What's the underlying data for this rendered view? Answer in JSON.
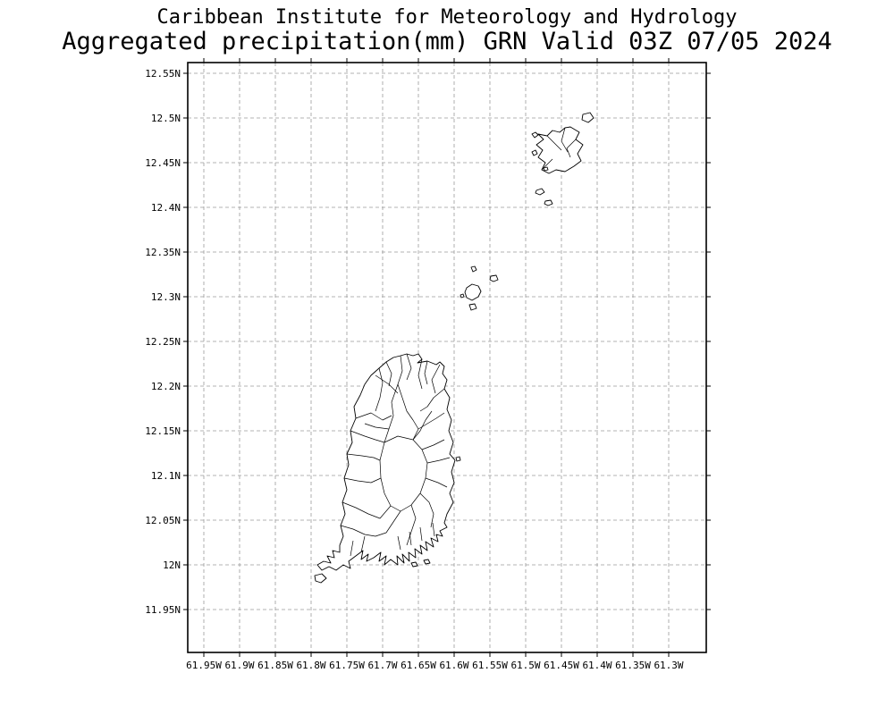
{
  "title": {
    "line1": "Caribbean Institute for Meteorology and Hydrology",
    "line2": "Aggregated precipitation(mm) GRN Valid 03Z 07/05 2024"
  },
  "chart_data": {
    "type": "map",
    "institution": "Caribbean Institute for Meteorology and Hydrology",
    "product": "Aggregated precipitation",
    "units": "mm",
    "domain_code": "GRN",
    "valid": "03Z 07/05 2024",
    "region": "Grenada, Carriacou and southern Grenadine islets",
    "lat_ticks": [
      "12.55N",
      "12.5N",
      "12.45N",
      "12.4N",
      "12.35N",
      "12.3N",
      "12.25N",
      "12.2N",
      "12.15N",
      "12.1N",
      "12.05N",
      "12N",
      "11.95N"
    ],
    "lon_ticks": [
      "61.95W",
      "61.9W",
      "61.85W",
      "61.8W",
      "61.75W",
      "61.7W",
      "61.65W",
      "61.6W",
      "61.55W",
      "61.5W",
      "61.45W",
      "61.4W",
      "61.35W",
      "61.3W"
    ],
    "grid_style": "dashed",
    "precipitation_shading_visible": false,
    "colors": {
      "background": "#ffffff",
      "outline": "#000000",
      "grid": "#9b9b9b",
      "text": "#000000"
    },
    "islands": [
      {
        "name": "grenada",
        "points": [
          [
            238,
            328
          ],
          [
            245,
            326
          ],
          [
            252,
            328
          ],
          [
            258,
            326
          ],
          [
            262,
            332
          ],
          [
            257,
            336
          ],
          [
            268,
            334
          ],
          [
            278,
            338
          ],
          [
            282,
            335
          ],
          [
            287,
            340
          ],
          [
            285,
            348
          ],
          [
            290,
            355
          ],
          [
            287,
            365
          ],
          [
            293,
            375
          ],
          [
            290,
            388
          ],
          [
            295,
            400
          ],
          [
            292,
            412
          ],
          [
            297,
            425
          ],
          [
            293,
            438
          ],
          [
            299,
            445
          ],
          [
            295,
            458
          ],
          [
            298,
            470
          ],
          [
            293,
            482
          ],
          [
            297,
            492
          ],
          [
            290,
            505
          ],
          [
            287,
            515
          ],
          [
            290,
            520
          ],
          [
            282,
            524
          ],
          [
            285,
            530
          ],
          [
            278,
            528
          ],
          [
            280,
            536
          ],
          [
            272,
            532
          ],
          [
            275,
            542
          ],
          [
            266,
            536
          ],
          [
            268,
            546
          ],
          [
            260,
            540
          ],
          [
            262,
            550
          ],
          [
            254,
            544
          ],
          [
            255,
            554
          ],
          [
            247,
            548
          ],
          [
            248,
            558
          ],
          [
            240,
            550
          ],
          [
            242,
            560
          ],
          [
            234,
            552
          ],
          [
            235,
            562
          ],
          [
            227,
            556
          ],
          [
            220,
            562
          ],
          [
            222,
            552
          ],
          [
            214,
            558
          ],
          [
            216,
            548
          ],
          [
            208,
            554
          ],
          [
            200,
            558
          ],
          [
            202,
            550
          ],
          [
            194,
            556
          ],
          [
            196,
            546
          ],
          [
            188,
            552
          ],
          [
            180,
            558
          ],
          [
            182,
            566
          ],
          [
            174,
            562
          ],
          [
            166,
            568
          ],
          [
            158,
            564
          ],
          [
            150,
            568
          ],
          [
            145,
            562
          ],
          [
            152,
            558
          ],
          [
            160,
            560
          ],
          [
            156,
            552
          ],
          [
            164,
            554
          ],
          [
            162,
            546
          ],
          [
            170,
            548
          ],
          [
            170,
            540
          ],
          [
            174,
            530
          ],
          [
            171,
            518
          ],
          [
            176,
            505
          ],
          [
            173,
            492
          ],
          [
            178,
            478
          ],
          [
            175,
            465
          ],
          [
            180,
            450
          ],
          [
            178,
            438
          ],
          [
            184,
            425
          ],
          [
            182,
            412
          ],
          [
            188,
            398
          ],
          [
            186,
            385
          ],
          [
            193,
            372
          ],
          [
            198,
            360
          ],
          [
            205,
            350
          ],
          [
            214,
            342
          ],
          [
            222,
            335
          ],
          [
            230,
            330
          ]
        ]
      },
      {
        "name": "carriacou",
        "points": [
          [
            428,
            72
          ],
          [
            438,
            78
          ],
          [
            434,
            86
          ],
          [
            442,
            92
          ],
          [
            436,
            102
          ],
          [
            440,
            110
          ],
          [
            432,
            116
          ],
          [
            422,
            122
          ],
          [
            412,
            120
          ],
          [
            404,
            124
          ],
          [
            396,
            120
          ],
          [
            400,
            112
          ],
          [
            392,
            106
          ],
          [
            397,
            98
          ],
          [
            390,
            92
          ],
          [
            398,
            86
          ],
          [
            392,
            80
          ],
          [
            402,
            82
          ],
          [
            408,
            76
          ],
          [
            416,
            78
          ],
          [
            422,
            73
          ]
        ]
      },
      {
        "name": "petite-martinique",
        "points": [
          [
            442,
            58
          ],
          [
            450,
            56
          ],
          [
            454,
            62
          ],
          [
            448,
            67
          ],
          [
            441,
            64
          ]
        ]
      },
      {
        "name": "sandy-island",
        "points": [
          [
            385,
            80
          ],
          [
            389,
            78
          ],
          [
            392,
            81
          ],
          [
            388,
            84
          ]
        ]
      },
      {
        "name": "mabouya-island",
        "points": [
          [
            385,
            100
          ],
          [
            389,
            98
          ],
          [
            391,
            102
          ],
          [
            387,
            104
          ]
        ]
      },
      {
        "name": "jack-a-dan",
        "points": [
          [
            398,
            118
          ],
          [
            402,
            117
          ],
          [
            403,
            120
          ],
          [
            399,
            121
          ]
        ]
      },
      {
        "name": "saline-island",
        "points": [
          [
            390,
            143
          ],
          [
            396,
            141
          ],
          [
            399,
            145
          ],
          [
            394,
            148
          ],
          [
            389,
            146
          ]
        ]
      },
      {
        "name": "frigate-island",
        "points": [
          [
            400,
            155
          ],
          [
            406,
            154
          ],
          [
            408,
            158
          ],
          [
            403,
            160
          ],
          [
            399,
            158
          ]
        ]
      },
      {
        "name": "london-bridge",
        "points": [
          [
            317,
            229
          ],
          [
            321,
            228
          ],
          [
            323,
            232
          ],
          [
            319,
            234
          ]
        ]
      },
      {
        "name": "les-tantes",
        "points": [
          [
            339,
            239
          ],
          [
            345,
            238
          ],
          [
            347,
            243
          ],
          [
            342,
            245
          ],
          [
            338,
            243
          ]
        ]
      },
      {
        "name": "ronde-island",
        "points": [
          [
            312,
            252
          ],
          [
            318,
            248
          ],
          [
            325,
            250
          ],
          [
            328,
            256
          ],
          [
            325,
            262
          ],
          [
            318,
            266
          ],
          [
            312,
            263
          ],
          [
            310,
            257
          ]
        ]
      },
      {
        "name": "caille-island",
        "points": [
          [
            315,
            271
          ],
          [
            321,
            270
          ],
          [
            323,
            275
          ],
          [
            317,
            277
          ]
        ]
      },
      {
        "name": "diamond-rock",
        "points": [
          [
            305,
            260
          ],
          [
            308,
            259
          ],
          [
            309,
            262
          ],
          [
            306,
            263
          ]
        ]
      },
      {
        "name": "east-coast-islet",
        "points": [
          [
            300,
            442
          ],
          [
            304,
            441
          ],
          [
            305,
            445
          ],
          [
            301,
            446
          ]
        ]
      },
      {
        "name": "hog-island",
        "points": [
          [
            250,
            560
          ],
          [
            255,
            559
          ],
          [
            257,
            563
          ],
          [
            252,
            564
          ]
        ]
      },
      {
        "name": "calivigny-island",
        "points": [
          [
            264,
            557
          ],
          [
            269,
            556
          ],
          [
            271,
            560
          ],
          [
            266,
            561
          ]
        ]
      },
      {
        "name": "glover-island",
        "points": [
          [
            142,
            574
          ],
          [
            150,
            572
          ],
          [
            155,
            577
          ],
          [
            149,
            582
          ],
          [
            143,
            580
          ]
        ]
      }
    ],
    "watershed_boundaries": [
      [
        [
          220,
          425
        ],
        [
          235,
          418
        ],
        [
          252,
          422
        ],
        [
          262,
          433
        ],
        [
          268,
          448
        ],
        [
          266,
          465
        ],
        [
          260,
          482
        ],
        [
          250,
          495
        ],
        [
          238,
          502
        ],
        [
          227,
          496
        ],
        [
          220,
          482
        ],
        [
          216,
          465
        ],
        [
          215,
          445
        ],
        [
          220,
          425
        ]
      ],
      [
        [
          238,
          328
        ],
        [
          240,
          345
        ],
        [
          235,
          360
        ],
        [
          240,
          375
        ]
      ],
      [
        [
          245,
          326
        ],
        [
          250,
          342
        ],
        [
          245,
          355
        ]
      ],
      [
        [
          210,
          350
        ],
        [
          225,
          360
        ],
        [
          235,
          370
        ]
      ],
      [
        [
          262,
          332
        ],
        [
          258,
          350
        ],
        [
          262,
          365
        ]
      ],
      [
        [
          282,
          338
        ],
        [
          273,
          355
        ],
        [
          277,
          370
        ]
      ],
      [
        [
          287,
          365
        ],
        [
          275,
          375
        ],
        [
          268,
          385
        ],
        [
          260,
          390
        ]
      ],
      [
        [
          240,
          375
        ],
        [
          245,
          390
        ],
        [
          252,
          400
        ],
        [
          258,
          410
        ],
        [
          252,
          422
        ]
      ],
      [
        [
          235,
          360
        ],
        [
          228,
          380
        ],
        [
          230,
          395
        ],
        [
          225,
          410
        ],
        [
          220,
          425
        ]
      ],
      [
        [
          188,
          398
        ],
        [
          205,
          392
        ],
        [
          218,
          400
        ],
        [
          228,
          395
        ]
      ],
      [
        [
          182,
          412
        ],
        [
          198,
          418
        ],
        [
          210,
          422
        ],
        [
          220,
          425
        ]
      ],
      [
        [
          178,
          438
        ],
        [
          195,
          440
        ],
        [
          208,
          442
        ],
        [
          215,
          445
        ]
      ],
      [
        [
          175,
          465
        ],
        [
          190,
          468
        ],
        [
          205,
          470
        ],
        [
          216,
          465
        ]
      ],
      [
        [
          173,
          492
        ],
        [
          188,
          498
        ],
        [
          202,
          505
        ],
        [
          215,
          510
        ],
        [
          227,
          496
        ]
      ],
      [
        [
          171,
          518
        ],
        [
          185,
          522
        ],
        [
          198,
          528
        ],
        [
          210,
          530
        ],
        [
          222,
          526
        ],
        [
          238,
          502
        ]
      ],
      [
        [
          250,
          495
        ],
        [
          255,
          510
        ],
        [
          250,
          525
        ],
        [
          245,
          540
        ]
      ],
      [
        [
          260,
          482
        ],
        [
          270,
          492
        ],
        [
          275,
          505
        ],
        [
          272,
          520
        ]
      ],
      [
        [
          266,
          465
        ],
        [
          280,
          470
        ],
        [
          290,
          475
        ]
      ],
      [
        [
          268,
          448
        ],
        [
          282,
          445
        ],
        [
          293,
          442
        ]
      ],
      [
        [
          262,
          433
        ],
        [
          275,
          428
        ],
        [
          287,
          422
        ]
      ],
      [
        [
          252,
          422
        ],
        [
          260,
          412
        ],
        [
          266,
          400
        ],
        [
          273,
          390
        ]
      ],
      [
        [
          214,
          342
        ],
        [
          218,
          358
        ],
        [
          215,
          375
        ],
        [
          210,
          390
        ]
      ],
      [
        [
          225,
          410
        ],
        [
          210,
          408
        ],
        [
          198,
          404
        ]
      ],
      [
        [
          258,
          410
        ],
        [
          268,
          404
        ],
        [
          278,
          398
        ],
        [
          287,
          392
        ]
      ],
      [
        [
          222,
          335
        ],
        [
          228,
          348
        ],
        [
          225,
          362
        ]
      ],
      [
        [
          268,
          334
        ],
        [
          265,
          348
        ],
        [
          268,
          360
        ]
      ],
      [
        [
          235,
          530
        ],
        [
          238,
          545
        ]
      ],
      [
        [
          248,
          525
        ],
        [
          250,
          540
        ]
      ],
      [
        [
          260,
          520
        ],
        [
          262,
          535
        ]
      ],
      [
        [
          274,
          515
        ],
        [
          276,
          530
        ]
      ],
      [
        [
          198,
          530
        ],
        [
          194,
          548
        ]
      ],
      [
        [
          185,
          535
        ],
        [
          182,
          552
        ]
      ],
      [
        [
          402,
          82
        ],
        [
          410,
          90
        ],
        [
          418,
          98
        ]
      ],
      [
        [
          422,
          73
        ],
        [
          418,
          88
        ],
        [
          425,
          100
        ]
      ],
      [
        [
          396,
          120
        ],
        [
          408,
          108
        ]
      ],
      [
        [
          434,
          86
        ],
        [
          424,
          96
        ],
        [
          428,
          106
        ]
      ]
    ]
  }
}
